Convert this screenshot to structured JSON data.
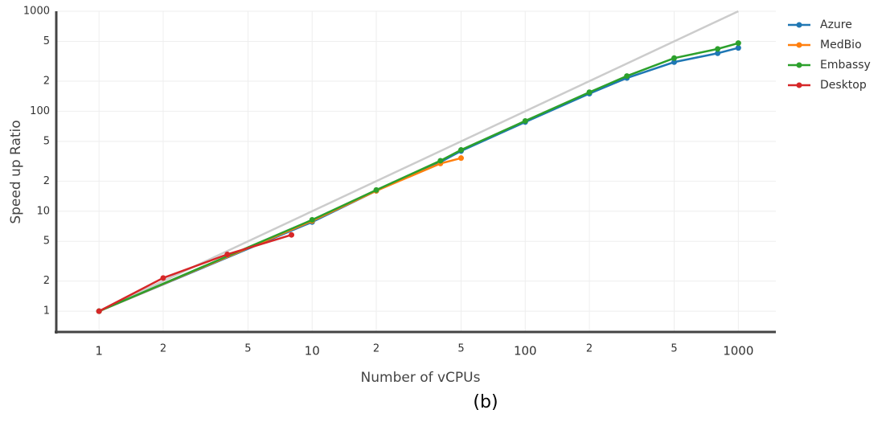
{
  "chart_data": {
    "type": "line",
    "x_label": "Number of vCPUs",
    "y_label": "Speed up Ratio",
    "caption": "(b)",
    "xscale": "log",
    "yscale": "log",
    "grid": true,
    "legend": "right",
    "xlim": [
      0.63,
      1500
    ],
    "ylim": [
      0.62,
      1000
    ],
    "xticks": [
      1,
      2,
      5,
      10,
      {
        "value": 20,
        "label": "2"
      },
      {
        "value": 50,
        "label": "5"
      },
      100,
      {
        "value": 200,
        "label": "2"
      },
      {
        "value": 500,
        "label": "5"
      },
      1000
    ],
    "yticks": [
      1,
      2,
      5,
      10,
      {
        "value": 20,
        "label": "2"
      },
      {
        "value": 50,
        "label": "5"
      },
      100,
      {
        "value": 200,
        "label": "2"
      },
      {
        "value": 500,
        "label": "5"
      },
      1000
    ],
    "reference_line": {
      "x": [
        1,
        1000
      ],
      "values": [
        1,
        1000
      ],
      "color": "#cccccc"
    },
    "series": [
      {
        "name": "Azure",
        "color": "#1f77b4",
        "x": [
          1,
          10,
          20,
          40,
          50,
          100,
          200,
          300,
          500,
          800,
          1000
        ],
        "values": [
          1,
          7.8,
          16,
          31,
          40,
          78,
          150,
          215,
          310,
          380,
          430
        ]
      },
      {
        "name": "MedBio",
        "color": "#ff7f0e",
        "x": [
          1,
          10,
          20,
          40,
          50
        ],
        "values": [
          1,
          8,
          16,
          30,
          34
        ]
      },
      {
        "name": "Embassy",
        "color": "#2ca02c",
        "x": [
          1,
          10,
          20,
          40,
          50,
          100,
          200,
          300,
          500,
          800,
          1000
        ],
        "values": [
          1,
          8.2,
          16.3,
          32,
          41,
          80,
          155,
          225,
          340,
          420,
          480
        ]
      },
      {
        "name": "Desktop",
        "color": "#d62728",
        "x": [
          1,
          2,
          4,
          8
        ],
        "values": [
          1,
          2.15,
          3.7,
          5.8
        ]
      }
    ]
  }
}
